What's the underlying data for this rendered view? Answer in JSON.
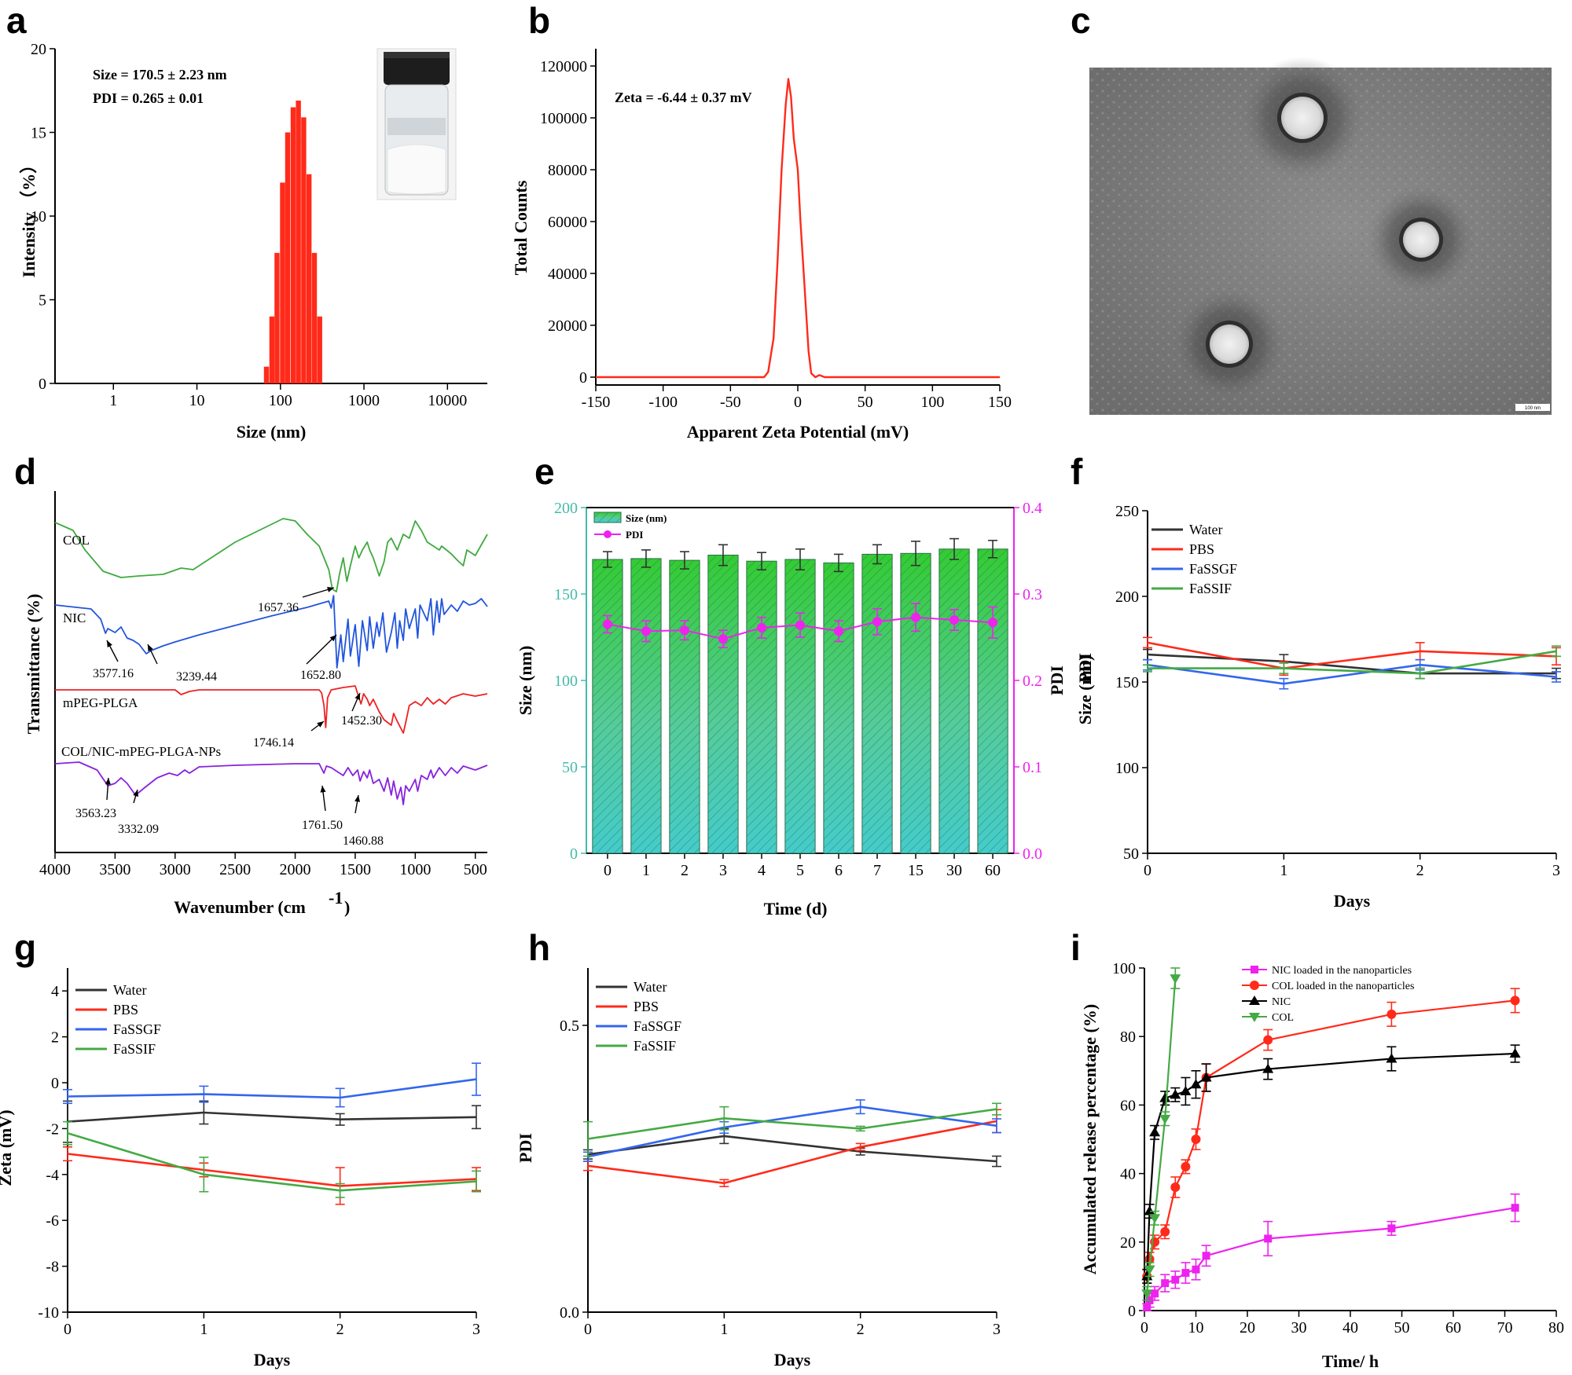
{
  "panels": {
    "a": "a",
    "b": "b",
    "c": "c",
    "d": "d",
    "e": "e",
    "f": "f",
    "g": "g",
    "h": "h",
    "i": "i"
  },
  "colors": {
    "red": "#ff2a1a",
    "black": "#333333",
    "blue": "#3366ee",
    "green": "#44aa44",
    "magenta": "#ee22ee",
    "col_ftir": "#3faa3f",
    "nic_ftir": "#2255dd",
    "mpeg_ftir": "#ee2222",
    "np_ftir": "#8822dd",
    "teal": "#44bbaa"
  },
  "chart_data": [
    {
      "id": "a",
      "type": "bar",
      "xlabel": "Size (nm)",
      "ylabel": "Intensity （%）",
      "x_scale": "log",
      "xticks": [
        "1",
        "10",
        "100",
        "1000",
        "10000"
      ],
      "yticks": [
        "0",
        "5",
        "10",
        "15",
        "20"
      ],
      "ylim": [
        0,
        20
      ],
      "annotations": [
        "Size = 170.5 ± 2.23 nm",
        "PDI = 0.265 ± 0.01"
      ],
      "x": [
        68,
        79,
        91,
        106,
        122,
        142,
        164,
        190,
        220,
        255,
        295
      ],
      "values": [
        1.0,
        4.0,
        7.8,
        12.0,
        15.0,
        16.5,
        16.9,
        15.9,
        12.5,
        7.8,
        4.0
      ]
    },
    {
      "id": "b",
      "type": "line",
      "xlabel": "Apparent Zeta Potential (mV)",
      "ylabel": "Total Counts",
      "xticks": [
        "-150",
        "-100",
        "-50",
        "0",
        "50",
        "100",
        "150"
      ],
      "yticks": [
        "0",
        "20000",
        "40000",
        "60000",
        "80000",
        "100000",
        "120000"
      ],
      "xlim": [
        -150,
        150
      ],
      "ylim": [
        0,
        120000
      ],
      "annotations": [
        "Zeta = -6.44 ± 0.37 mV"
      ],
      "x": [
        -150,
        -25,
        -22,
        -18,
        -15,
        -12,
        -9,
        -7,
        -5,
        -3,
        0,
        2,
        5,
        8,
        10,
        13,
        16,
        20,
        150
      ],
      "values": [
        0,
        0,
        2000,
        15000,
        45000,
        80000,
        105000,
        115000,
        108000,
        92000,
        80000,
        60000,
        35000,
        10000,
        1500,
        0,
        800,
        0,
        0
      ]
    },
    {
      "id": "d",
      "type": "line",
      "xlabel": "Wavenumber (cm",
      "xlabel_sup": "-1",
      "xlabel_end": ")",
      "ylabel": "Transmittance (%)",
      "xticks": [
        "4000",
        "3500",
        "3000",
        "2500",
        "2000",
        "1500",
        "1000",
        "500"
      ],
      "xlim": [
        4000,
        400
      ],
      "curves": [
        "COL",
        "NIC",
        "mPEG-PLGA",
        "COL/NIC-mPEG-PLGA-NPs"
      ],
      "peaks": [
        "1657.36",
        "3577.16",
        "3239.44",
        "1652.80",
        "1746.14",
        "1452.30",
        "3563.23",
        "3332.09",
        "1761.50",
        "1460.88"
      ]
    },
    {
      "id": "e",
      "type": "bar",
      "xlabel": "Time (d)",
      "ylabel": "Size (nm)",
      "ylabel_right": "PDI",
      "categories": [
        "0",
        "1",
        "2",
        "3",
        "4",
        "5",
        "6",
        "7",
        "15",
        "30",
        "60"
      ],
      "yticks": [
        "0",
        "50",
        "100",
        "150",
        "200"
      ],
      "yticks_right": [
        "0.0",
        "0.1",
        "0.2",
        "0.3",
        "0.4"
      ],
      "ylim": [
        0,
        200
      ],
      "ylim_right": [
        0,
        0.4
      ],
      "legend": [
        "Size (nm)",
        "PDI"
      ],
      "series": [
        {
          "name": "Size (nm)",
          "values": [
            170,
            170.5,
            169.5,
            172.5,
            169,
            170,
            168,
            173,
            173.5,
            176,
            176
          ],
          "err": [
            4.5,
            5,
            5,
            6,
            5,
            6,
            5,
            5.5,
            7,
            6,
            5
          ]
        },
        {
          "name": "PDI",
          "values": [
            0.265,
            0.257,
            0.258,
            0.248,
            0.261,
            0.264,
            0.257,
            0.268,
            0.273,
            0.27,
            0.267
          ],
          "err": [
            0.01,
            0.012,
            0.011,
            0.01,
            0.012,
            0.014,
            0.012,
            0.015,
            0.016,
            0.012,
            0.018
          ]
        }
      ]
    },
    {
      "id": "f",
      "type": "line",
      "xlabel": "Days",
      "ylabel": "Size (nm)",
      "ylabel_extra": "PDI",
      "x": [
        0,
        1,
        2,
        3
      ],
      "xticks": [
        "0",
        "1",
        "2",
        "3"
      ],
      "yticks": [
        "50",
        "100",
        "150",
        "200",
        "250"
      ],
      "ylim": [
        50,
        250
      ],
      "legend": [
        "Water",
        "PBS",
        "FaSSGF",
        "FaSSIF"
      ],
      "series": [
        {
          "name": "Water",
          "values": [
            166,
            162,
            155,
            155
          ],
          "err": [
            3,
            4,
            3,
            3
          ]
        },
        {
          "name": "PBS",
          "values": [
            173,
            158,
            168,
            165
          ],
          "err": [
            3,
            4,
            5,
            5
          ]
        },
        {
          "name": "FaSSGF",
          "values": [
            160,
            149,
            160,
            153
          ],
          "err": [
            3,
            3,
            3,
            3
          ]
        },
        {
          "name": "FaSSIF",
          "values": [
            158,
            158,
            155,
            168
          ],
          "err": [
            2,
            3,
            3,
            3
          ]
        }
      ]
    },
    {
      "id": "g",
      "type": "line",
      "xlabel": "Days",
      "ylabel": "Zeta (mV)",
      "x": [
        0,
        1,
        2,
        3
      ],
      "xticks": [
        "0",
        "1",
        "2",
        "3"
      ],
      "yticks": [
        "-10",
        "-8",
        "-6",
        "-4",
        "-2",
        "0",
        "2",
        "4"
      ],
      "ylim": [
        -10,
        5
      ],
      "legend": [
        "Water",
        "PBS",
        "FaSSGF",
        "FaSSIF"
      ],
      "series": [
        {
          "name": "Water",
          "values": [
            -1.7,
            -1.3,
            -1.6,
            -1.5
          ],
          "err": [
            0.9,
            0.5,
            0.25,
            0.5
          ]
        },
        {
          "name": "PBS",
          "values": [
            -3.1,
            -3.8,
            -4.5,
            -4.2
          ],
          "err": [
            0.3,
            0.3,
            0.8,
            0.5
          ]
        },
        {
          "name": "FaSSGF",
          "values": [
            -0.6,
            -0.5,
            -0.65,
            0.15
          ],
          "err": [
            0.3,
            0.35,
            0.4,
            0.7
          ]
        },
        {
          "name": "FaSSIF",
          "values": [
            -2.2,
            -4.0,
            -4.7,
            -4.3
          ],
          "err": [
            0.5,
            0.75,
            0.3,
            0.45
          ]
        }
      ]
    },
    {
      "id": "h",
      "type": "line",
      "xlabel": "Days",
      "ylabel": "PDI",
      "x": [
        0,
        1,
        2,
        3
      ],
      "xticks": [
        "0",
        "1",
        "2",
        "3"
      ],
      "yticks": [
        "0.0",
        "0.5"
      ],
      "ylim": [
        0,
        0.6
      ],
      "legend": [
        "Water",
        "PBS",
        "FaSSGF",
        "FaSSIF"
      ],
      "series": [
        {
          "name": "Water",
          "values": [
            0.275,
            0.307,
            0.28,
            0.263
          ],
          "err": [
            0.008,
            0.013,
            0.006,
            0.009
          ]
        },
        {
          "name": "PBS",
          "values": [
            0.255,
            0.225,
            0.288,
            0.333
          ],
          "err": [
            0.008,
            0.006,
            0.006,
            0.02
          ]
        },
        {
          "name": "FaSSGF",
          "values": [
            0.271,
            0.322,
            0.358,
            0.325
          ],
          "err": [
            0.008,
            0.01,
            0.012,
            0.012
          ]
        },
        {
          "name": "FaSSIF",
          "values": [
            0.302,
            0.338,
            0.32,
            0.354
          ],
          "err": [
            0.03,
            0.02,
            0.004,
            0.01
          ]
        }
      ]
    },
    {
      "id": "i",
      "type": "line",
      "xlabel": "Time/ h",
      "ylabel": "Accumulated release percentage (%)",
      "xticks": [
        "0",
        "10",
        "20",
        "30",
        "40",
        "50",
        "60",
        "70",
        "80"
      ],
      "yticks": [
        "0",
        "20",
        "40",
        "60",
        "80",
        "100"
      ],
      "xlim": [
        0,
        80
      ],
      "ylim": [
        0,
        100
      ],
      "legend": [
        "NIC loaded in the nanoparticles",
        "COL loaded in the nanoparticles",
        "NIC",
        "COL"
      ],
      "series": [
        {
          "name": "NIC loaded in the nanoparticles",
          "x": [
            0.5,
            1,
            2,
            4,
            6,
            8,
            10,
            12,
            24,
            48,
            72
          ],
          "values": [
            1,
            3,
            5,
            8,
            9,
            11,
            12,
            16,
            21,
            24,
            30
          ],
          "err": [
            1,
            2,
            2,
            2.5,
            2.5,
            3,
            3,
            3,
            5,
            2,
            4
          ]
        },
        {
          "name": "COL loaded in the nanoparticles",
          "x": [
            0.5,
            1,
            2,
            4,
            6,
            8,
            10,
            12,
            24,
            48,
            72
          ],
          "values": [
            10,
            15,
            20,
            23,
            36,
            42,
            50,
            68,
            79,
            86.5,
            90.5
          ],
          "err": [
            2,
            2,
            2,
            2,
            3,
            2,
            3,
            4,
            3,
            3.5,
            3.5
          ]
        },
        {
          "name": "NIC",
          "x": [
            0.5,
            1,
            2,
            4,
            6,
            8,
            10,
            12,
            24,
            48,
            72
          ],
          "values": [
            10,
            29,
            52,
            62,
            63,
            64,
            66,
            68,
            70.5,
            73.5,
            75
          ],
          "err": [
            2,
            2,
            2,
            2,
            2,
            4,
            4,
            4,
            3,
            3.5,
            2.5
          ]
        },
        {
          "name": "COL",
          "x": [
            0.5,
            1,
            2,
            4,
            6
          ],
          "values": [
            5,
            12,
            27,
            56,
            97
          ],
          "err": [
            2,
            2,
            2,
            2,
            3
          ]
        }
      ]
    }
  ],
  "tem": {
    "scale_bar": "100 nm"
  }
}
